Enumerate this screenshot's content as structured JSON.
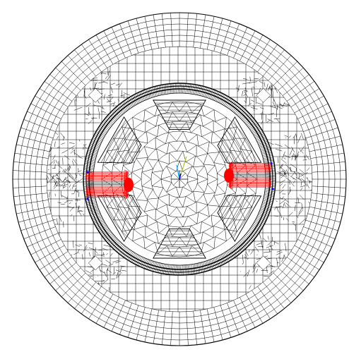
{
  "mesh_view": {
    "line_color": "#000000",
    "background_color": "#ffffff",
    "load_arrow_color": "#ff0000",
    "triad_colors": {
      "x": "#00aaff",
      "y": "#aacc00",
      "z": "#0000ff"
    },
    "components": [
      "outer-stator-ring",
      "air-gap-band",
      "rotor-core",
      "rotor-slots",
      "left-pole-load",
      "right-pole-load",
      "coordinate-triad"
    ],
    "rotor_slot_count": 4,
    "stator_pole_count": 8
  }
}
